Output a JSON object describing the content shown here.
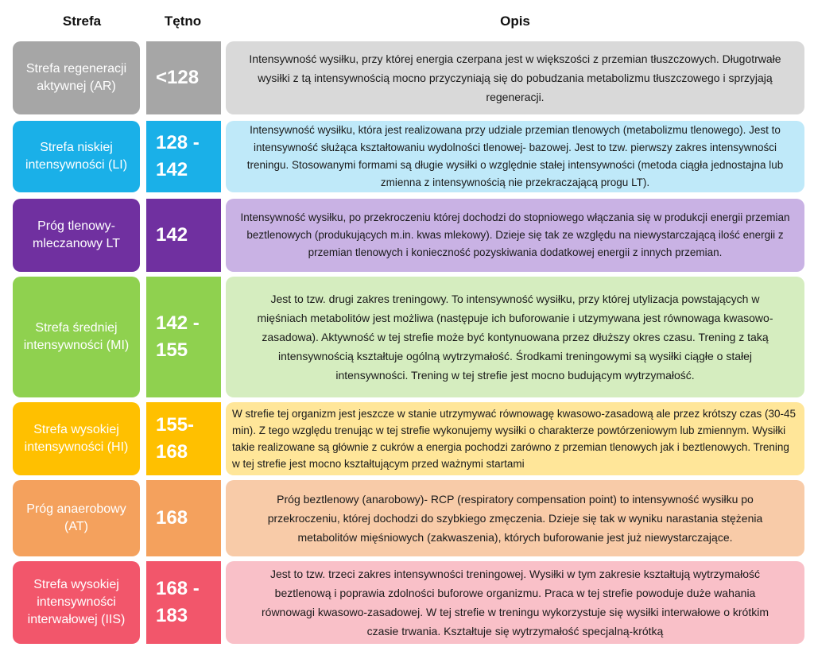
{
  "headers": {
    "zone": "Strefa",
    "hr": "Tętno",
    "desc": "Opis"
  },
  "rows": [
    {
      "zone": "Strefa regeneracji aktywnej (AR)",
      "hr": "<128",
      "desc": "Intensywność wysiłku, przy której energia czerpana jest w większości z przemian tłuszczowych. Długotrwałe wysiłki z tą intensywnością mocno przyczyniają się do pobudzania metabolizmu tłuszczowego i sprzyjają regeneracji.",
      "colors": {
        "zone": "#a6a6a6",
        "hr": "#a6a6a6",
        "desc": "#d9d9d9"
      }
    },
    {
      "zone": "Strefa niskiej intensywności (LI)",
      "hr": "128 - 142",
      "desc": "Intensywność wysiłku, która jest realizowana przy udziale przemian tlenowych (metabolizmu tlenowego). Jest to intensywność służąca kształtowaniu wydolności tlenowej- bazowej. Jest to tzw. pierwszy zakres intensywności treningu. Stosowanymi formami są długie wysiłki o względnie stałej intensywności (metoda ciągła jednostajna lub zmienna z intensywnością nie przekraczającą progu LT).",
      "colors": {
        "zone": "#1ab0e8",
        "hr": "#1ab0e8",
        "desc": "#bfe9f9"
      }
    },
    {
      "zone": "Próg tlenowy-mleczanowy LT",
      "hr": "142",
      "desc": "Intensywność wysiłku, po przekroczeniu której dochodzi do stopniowego włączania się w produkcji energii przemian beztlenowych (produkujących m.in. kwas mlekowy).  Dzieje się tak ze względu na niewystarczającą ilość energii z przemian tlenowych i konieczność pozyskiwania dodatkowej energii z innych przemian.",
      "colors": {
        "zone": "#7030a0",
        "hr": "#7030a0",
        "desc": "#c9b2e4"
      }
    },
    {
      "zone": "Strefa średniej intensywności (MI)",
      "hr": "142 - 155",
      "desc": "Jest to tzw. drugi zakres treningowy. To intensywność wysiłku, przy której utylizacja powstających w mięśniach metabolitów jest możliwa (następuje ich buforowanie i utzymywana jest równowaga kwasowo-zasadowa). Aktywność w tej strefie może być kontynuowana przez dłuższy okres czasu. Trening z taką intensywnością kształtuje ogólną wytrzymałość. Środkami treningowymi są wysiłki ciągłe o stałej intensywności. Trening w tej strefie jest mocno budującym wytrzymałość.",
      "colors": {
        "zone": "#8fd14f",
        "hr": "#8fd14f",
        "desc": "#d5edbf"
      }
    },
    {
      "zone": "Strefa wysokiej intensywności (HI)",
      "hr": "155- 168",
      "desc": "W strefie tej organizm jest jeszcze w stanie utrzymywać równowagę kwasowo-zasadową ale przez krótszy czas (30-45 min). Z tego względu trenując w tej strefie wykonujemy wysiłki o charakterze powtórzeniowym lub zmiennym. Wysiłki takie realizowane są głównie z cukrów a energia pochodzi zarówno z przemian tlenowych jak i beztlenowych. Trening w tej strefie jest mocno kształtującym przed ważnymi startami",
      "colors": {
        "zone": "#ffc000",
        "hr": "#ffc000",
        "desc": "#ffe699"
      }
    },
    {
      "zone": "Próg anaerobowy (AT)",
      "hr": "168",
      "desc": "Próg beztlenowy (anarobowy)- RCP (respiratory compensation point) to intensywność wysiłku po przekroczeniu, której dochodzi do szybkiego zmęczenia. Dzieje się tak w wyniku narastania stężenia metabolitów mięśniowych (zakwaszenia), których buforowanie jest już  niewystarczające.",
      "colors": {
        "zone": "#f4a15d",
        "hr": "#f4a15d",
        "desc": "#f8cba8"
      }
    },
    {
      "zone": "Strefa wysokiej intensywności interwałowej (IIS)",
      "hr": "168 - 183",
      "desc": "Jest to tzw. trzeci zakres intensywności treningowej. Wysiłki w tym zakresie kształtują wytrzymałość beztlenową i poprawia zdolności buforowe organizmu. Praca w tej strefie powoduje duże wahania równowagi kwasowo-zasadowej. W tej strefie w treningu wykorzystuje się wysiłki interwałowe o krótkim czasie trwania. Kształtuje się wytrzymałość specjalną-krótką",
      "colors": {
        "zone": "#f2566b",
        "hr": "#f2566b",
        "desc": "#f9c0c8"
      }
    }
  ]
}
